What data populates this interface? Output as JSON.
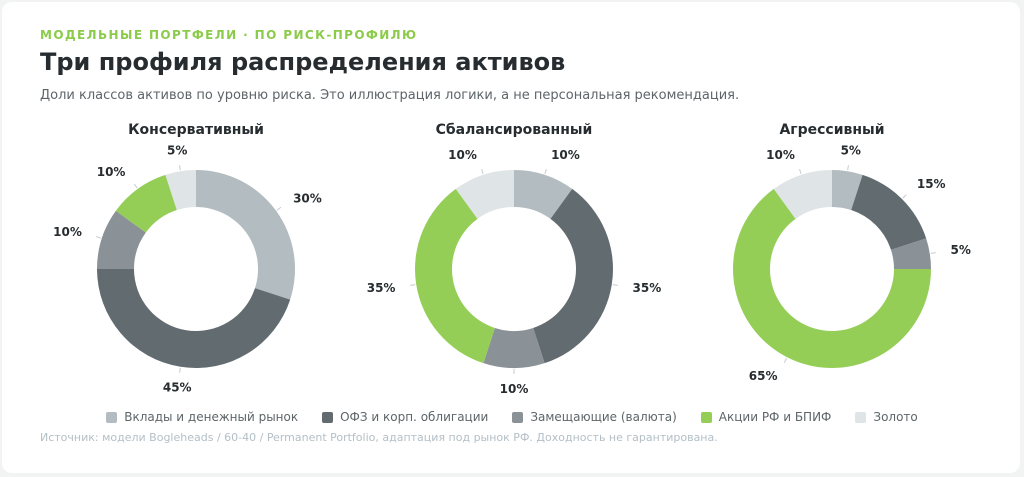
{
  "header": {
    "kicker": "МОДЕЛЬНЫЕ ПОРТФЕЛИ · ПО РИСК-ПРОФИЛЮ",
    "title": "Три профиля распределения активов",
    "subtitle": "Доли классов активов по уровню риска. Это иллюстрация логики, а не персональная рекомендация."
  },
  "legend": [
    {
      "label": "Вклады и денежный рынок",
      "color": "#b3bcc1"
    },
    {
      "label": "ОФЗ и корп. облигации",
      "color": "#626b6f"
    },
    {
      "label": "Замещающие (валюта)",
      "color": "#8a9298"
    },
    {
      "label": "Акции РФ и БПИФ",
      "color": "#95ce57"
    },
    {
      "label": "Золото",
      "color": "#dfe4e7"
    }
  ],
  "chart_data": [
    {
      "type": "pie",
      "title": "Консервативный",
      "categories": [
        "Вклады и денежный рынок",
        "ОФЗ и корп. облигации",
        "Замещающие (валюта)",
        "Акции РФ и БПИФ",
        "Золото"
      ],
      "values": [
        30,
        45,
        10,
        10,
        5
      ],
      "labels": [
        "30%",
        "45%",
        "10%",
        "10%",
        "5%"
      ]
    },
    {
      "type": "pie",
      "title": "Сбалансированный",
      "categories": [
        "Вклады и денежный рынок",
        "ОФЗ и корп. облигации",
        "Замещающие (валюта)",
        "Акции РФ и БПИФ",
        "Золото"
      ],
      "values": [
        10,
        35,
        10,
        35,
        10
      ],
      "labels": [
        "10%",
        "35%",
        "10%",
        "35%",
        "10%"
      ]
    },
    {
      "type": "pie",
      "title": "Агрессивный",
      "categories": [
        "Вклады и денежный рынок",
        "ОФЗ и корп. облигации",
        "Замещающие (валюта)",
        "Акции РФ и БПИФ",
        "Золото"
      ],
      "values": [
        5,
        15,
        5,
        65,
        10
      ],
      "labels": [
        "5%",
        "15%",
        "5%",
        "65%",
        "10%"
      ]
    }
  ],
  "footer": {
    "source": "Источник: модели Bogleheads / 60-40 / Permanent Portfolio, адаптация под рынок РФ. Доходность не гарантирована."
  }
}
